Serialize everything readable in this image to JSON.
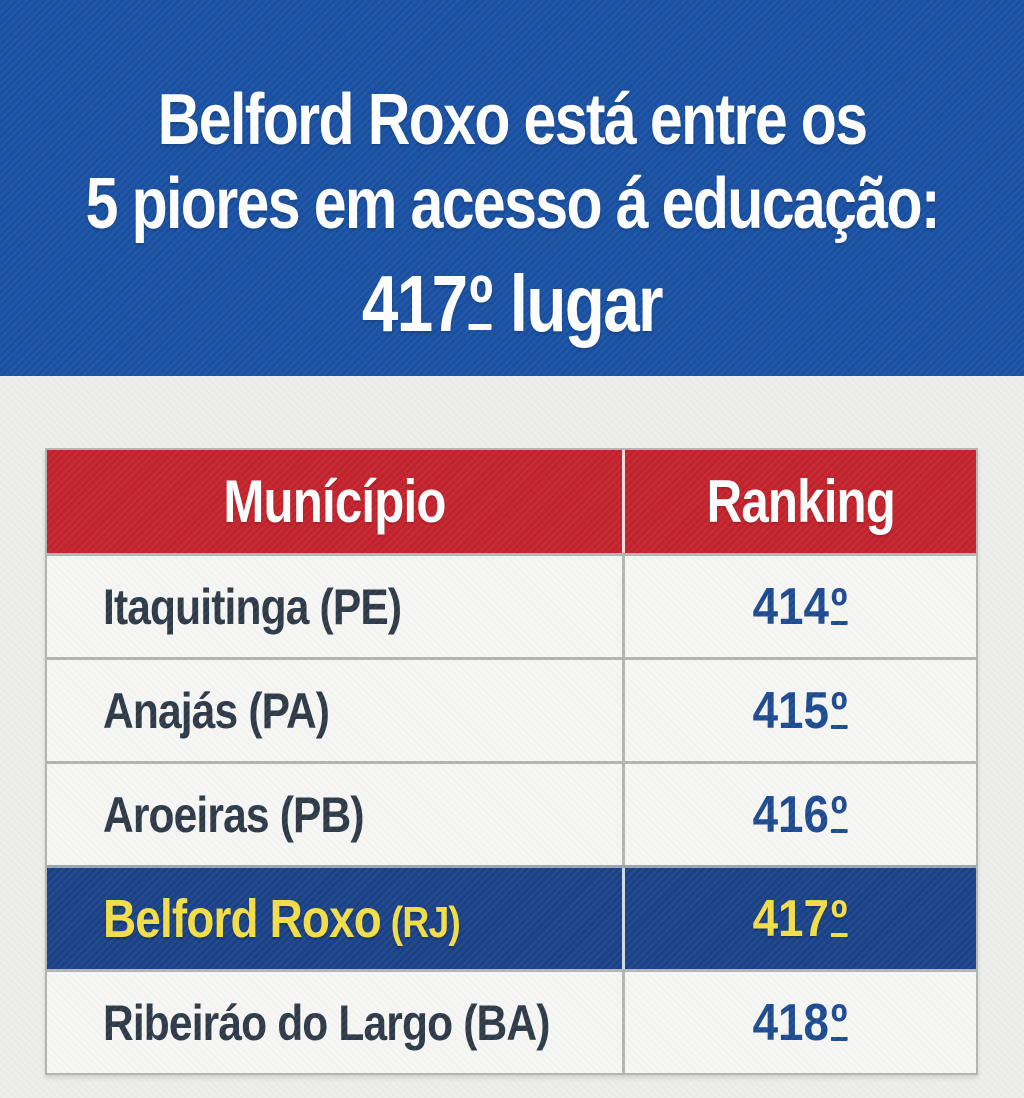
{
  "banner": {
    "line1": "Belford Roxo está entre os",
    "line2": "5 piores em acesso á educação:",
    "line3_number": "417",
    "line3_ordinal": "º",
    "line3_suffix": "lugar",
    "background_color": "#1950a2",
    "text_color": "#ffffff"
  },
  "table": {
    "header": {
      "municipality": "Munícípio",
      "ranking": "Ranking",
      "background_color": "#c2232c",
      "text_color": "#ffffff"
    },
    "rows": [
      {
        "name": "Itaquitinga",
        "state": "(PE)",
        "rank": "414",
        "ordinal": "º",
        "highlighted": false
      },
      {
        "name": "Anajás",
        "state": "(PA)",
        "rank": "415",
        "ordinal": "º",
        "highlighted": false
      },
      {
        "name": "Aroeiras",
        "state": "(PB)",
        "rank": "416",
        "ordinal": "º",
        "highlighted": false
      },
      {
        "name": "Belford Roxo",
        "state": "(RJ)",
        "rank": "417",
        "ordinal": "º",
        "highlighted": true
      },
      {
        "name": "Ribeiráo do Largo",
        "state": "(BA)",
        "rank": "418",
        "ordinal": "º",
        "highlighted": false
      }
    ],
    "colors": {
      "row_background": "#f6f6f4",
      "border": "#b4b4b2",
      "municipality_text": "#2e3a48",
      "rank_text": "#1d4b90",
      "highlight_background": "#1a4287",
      "highlight_text": "#f3dd49"
    }
  },
  "page_background": "#edeeec",
  "chart_data": {
    "type": "table",
    "title": "Belford Roxo está entre os 5 piores em acesso á educação: 417º lugar",
    "columns": [
      "Munícípio",
      "Ranking"
    ],
    "rows": [
      [
        "Itaquitinga (PE)",
        "414º"
      ],
      [
        "Anajás (PA)",
        "415º"
      ],
      [
        "Aroeiras (PB)",
        "416º"
      ],
      [
        "Belford Roxo (RJ)",
        "417º"
      ],
      [
        "Ribeiráo do Largo (BA)",
        "418º"
      ]
    ],
    "highlighted_row_index": 3,
    "legend_position": "none",
    "grid": true
  }
}
